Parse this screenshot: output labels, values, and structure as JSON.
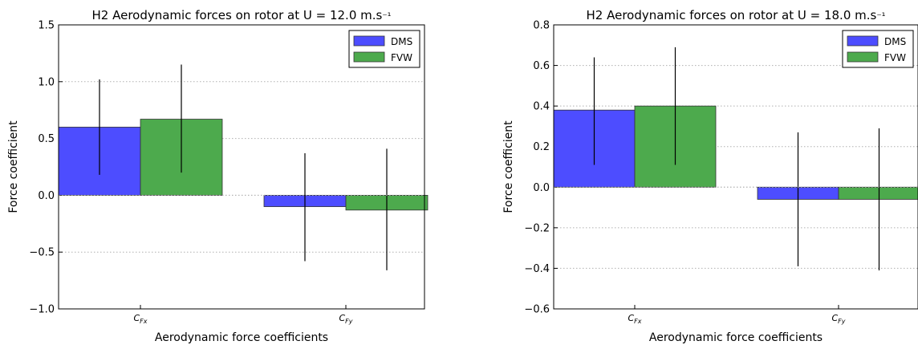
{
  "chart_data": [
    {
      "type": "bar",
      "title": "H2 Aerodynamic forces on rotor at U = 12.0 m.s⁻¹",
      "xlabel": "Aerodynamic force coefficients",
      "ylabel": "Force coefficient",
      "categories": [
        "C_Fx",
        "C_Fy"
      ],
      "ylim": [
        -1.0,
        1.5
      ],
      "yticks": [
        "−1.0",
        "−0.5",
        "0.0",
        "0.5",
        "1.0",
        "1.5"
      ],
      "ytick_values": [
        -1.0,
        -0.5,
        0.0,
        0.5,
        1.0,
        1.5
      ],
      "grid": true,
      "legend": "top-right",
      "series": [
        {
          "name": "DMS",
          "color": "#4d4dff",
          "values": [
            0.6,
            -0.1
          ],
          "error_low": [
            0.18,
            -0.58
          ],
          "error_high": [
            1.02,
            0.37
          ]
        },
        {
          "name": "FVW",
          "color": "#4daa4d",
          "values": [
            0.67,
            -0.13
          ],
          "error_low": [
            0.2,
            -0.66
          ],
          "error_high": [
            1.15,
            0.41
          ]
        }
      ]
    },
    {
      "type": "bar",
      "title": "H2 Aerodynamic forces on rotor at U = 18.0 m.s⁻¹",
      "xlabel": "Aerodynamic force coefficients",
      "ylabel": "Force coefficient",
      "categories": [
        "C_Fx",
        "C_Fy"
      ],
      "ylim": [
        -0.6,
        0.8
      ],
      "yticks": [
        "−0.6",
        "−0.4",
        "−0.2",
        "0.0",
        "0.2",
        "0.4",
        "0.6",
        "0.8"
      ],
      "ytick_values": [
        -0.6,
        -0.4,
        -0.2,
        0.0,
        0.2,
        0.4,
        0.6,
        0.8
      ],
      "grid": true,
      "legend": "top-right",
      "series": [
        {
          "name": "DMS",
          "color": "#4d4dff",
          "values": [
            0.38,
            -0.06
          ],
          "error_low": [
            0.11,
            -0.39
          ],
          "error_high": [
            0.64,
            0.27
          ]
        },
        {
          "name": "FVW",
          "color": "#4daa4d",
          "values": [
            0.4,
            -0.06
          ],
          "error_low": [
            0.11,
            -0.41
          ],
          "error_high": [
            0.69,
            0.29
          ]
        }
      ]
    }
  ]
}
